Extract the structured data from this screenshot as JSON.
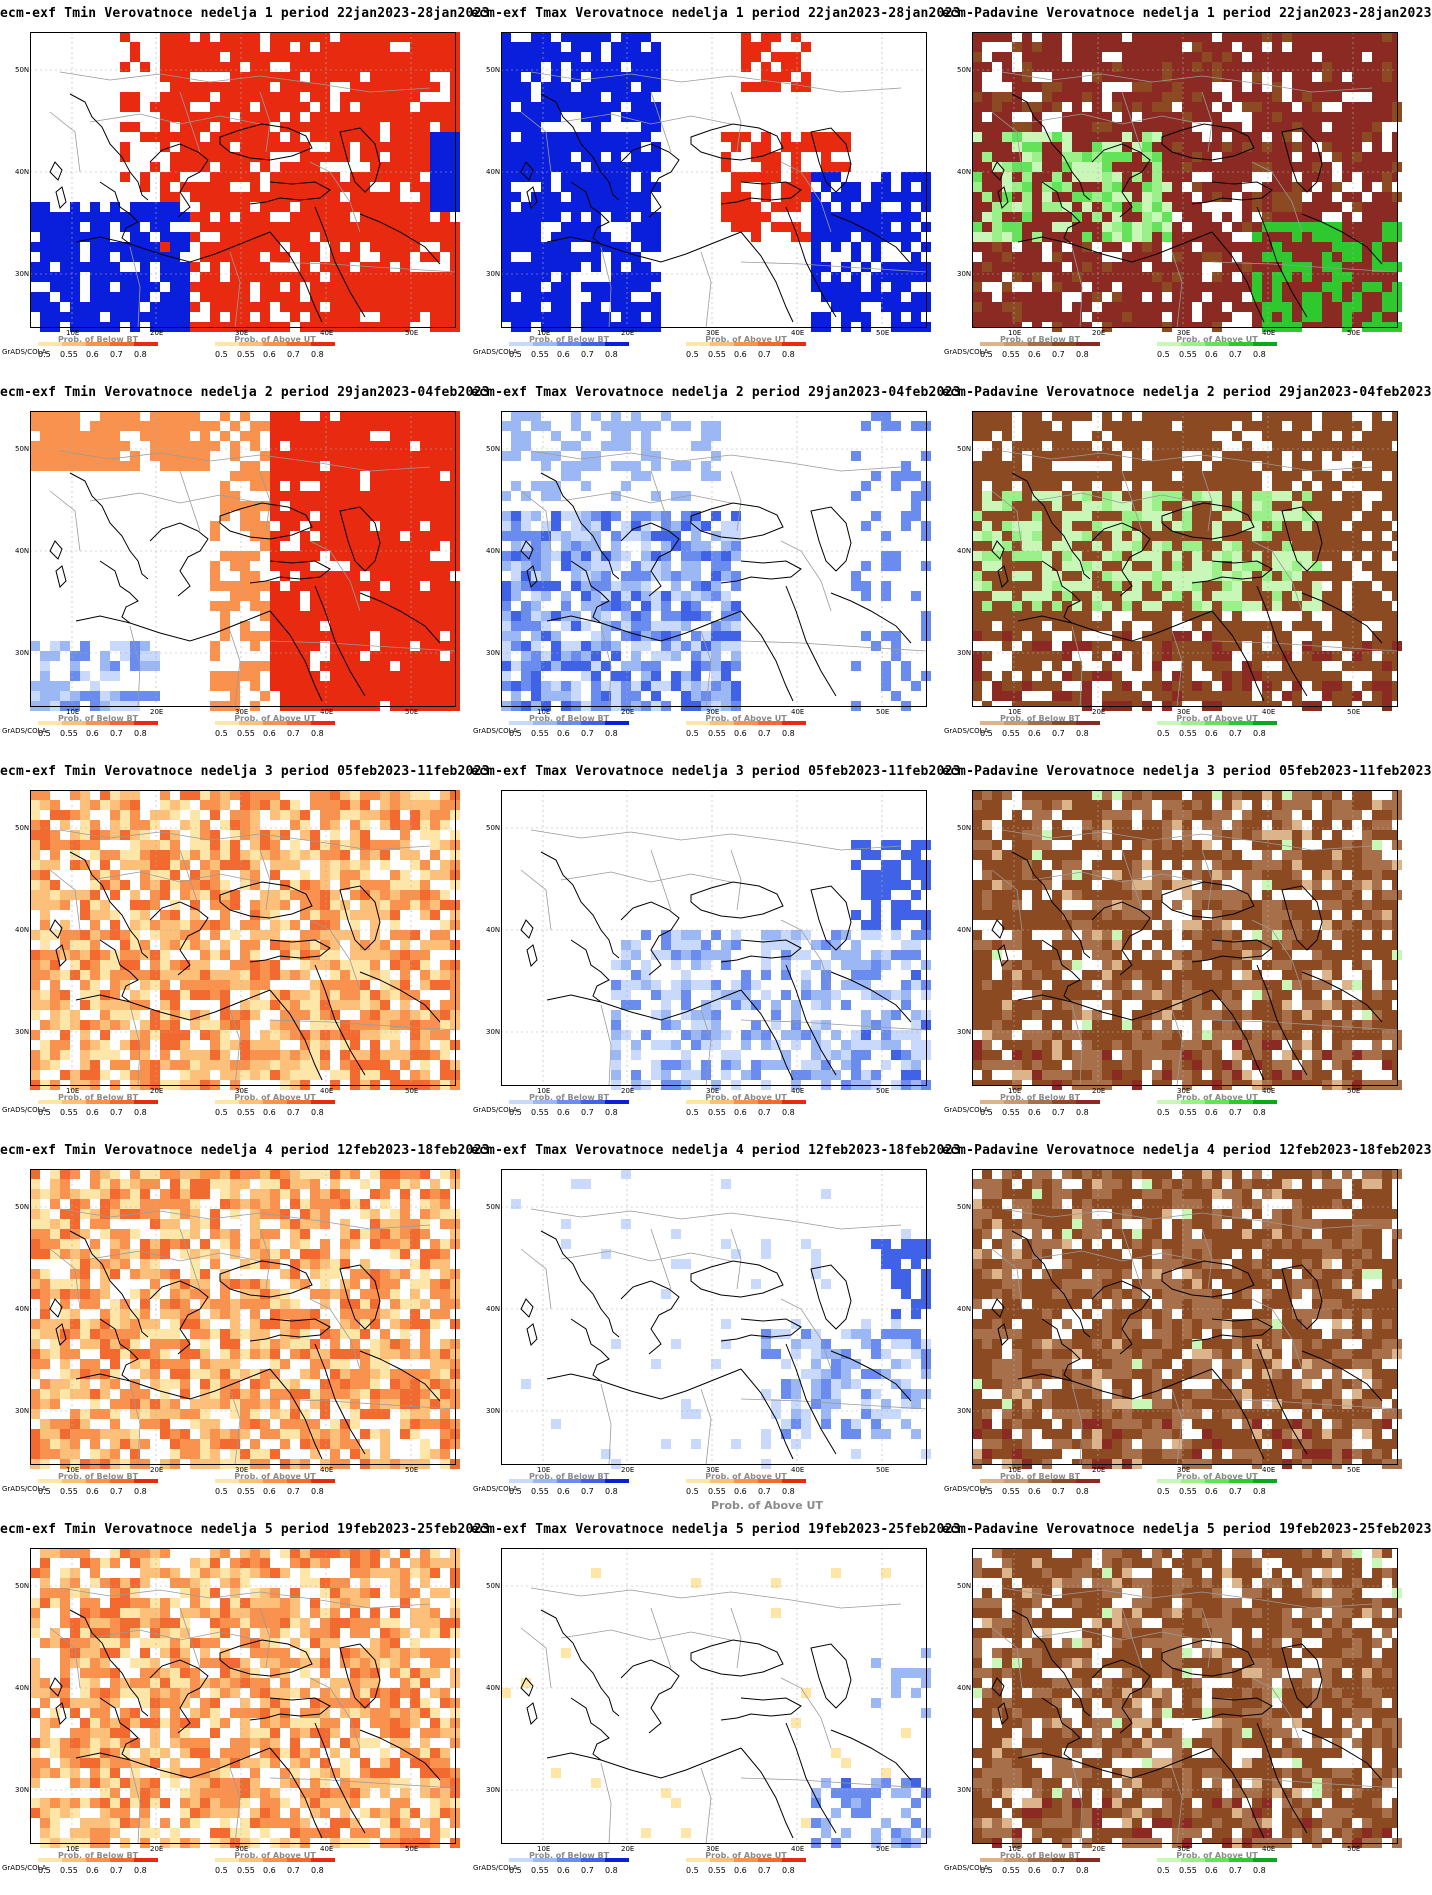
{
  "panels": [
    {
      "title": "ecm-exf Tmin Verovatnoce nedelja 1 period 22jan2023-28jan2023",
      "kind": "tmin",
      "fill": "red-strong"
    },
    {
      "title": "ecm-exf Tmax Verovatnoce nedelja 1 period 22jan2023-28jan2023",
      "kind": "tmax",
      "fill": "blue-strong"
    },
    {
      "title": "ecm-Padavine Verovatnoce nedelja 1 period 22jan2023-28jan2023",
      "kind": "prec",
      "fill": "maroon"
    },
    {
      "title": "ecm-exf Tmin Verovatnoce nedelja 2 period 29jan2023-04feb2023",
      "kind": "tmin",
      "fill": "red"
    },
    {
      "title": "ecm-exf Tmax Verovatnoce nedelja 2 period 29jan2023-04feb2023",
      "kind": "tmax",
      "fill": "blue"
    },
    {
      "title": "ecm-Padavine Verovatnoce nedelja 2 period 29jan2023-04feb2023",
      "kind": "prec",
      "fill": "brown-green"
    },
    {
      "title": "ecm-exf Tmin Verovatnoce nedelja 3 period 05feb2023-11feb2023",
      "kind": "tmin",
      "fill": "orange"
    },
    {
      "title": "ecm-exf Tmax Verovatnoce nedelja 3 period 05feb2023-11feb2023",
      "kind": "tmax",
      "fill": "blue-light"
    },
    {
      "title": "ecm-Padavine Verovatnoce nedelja 3 period 05feb2023-11feb2023",
      "kind": "prec",
      "fill": "brown"
    },
    {
      "title": "ecm-exf Tmin Verovatnoce nedelja 4 period 12feb2023-18feb2023",
      "kind": "tmin",
      "fill": "orange"
    },
    {
      "title": "ecm-exf Tmax Verovatnoce nedelja 4 period 12feb2023-18feb2023",
      "kind": "tmax",
      "fill": "blue-sparse"
    },
    {
      "title": "ecm-Padavine Verovatnoce nedelja 4 period 12feb2023-18feb2023",
      "kind": "prec",
      "fill": "brown"
    },
    {
      "title": "ecm-exf Tmin Verovatnoce nedelja 5 period 19feb2023-25feb2023",
      "kind": "tmin",
      "fill": "orange"
    },
    {
      "title": "ecm-exf Tmax Verovatnoce nedelja 5 period 19feb2023-25feb2023",
      "kind": "tmax",
      "fill": "blue-minimal"
    },
    {
      "title": "ecm-Padavine Verovatnoce nedelja 5 period 19feb2023-25feb2023",
      "kind": "prec",
      "fill": "brown"
    }
  ],
  "x_ticks": [
    "10E",
    "20E",
    "30E",
    "40E",
    "50E"
  ],
  "y_ticks": [
    "50N",
    "40N",
    "30N"
  ],
  "credit": "GrADS/COLA",
  "legend_values": [
    "0.5",
    "0.55",
    "0.6",
    "0.7",
    "0.8"
  ],
  "legend_titles": {
    "below": "Prob. of Below BT",
    "above": "Prob. of Above UT"
  },
  "extra_label": "Prob. of Above UT",
  "colors": {
    "red_scale": [
      "#fde6a8",
      "#fdc07a",
      "#f9924e",
      "#f26a30",
      "#e82a10"
    ],
    "blue_scale": [
      "#c8d9fb",
      "#9bb8f5",
      "#6a8cef",
      "#3f62e6",
      "#0a1fdc"
    ],
    "brown_scale": [
      "#dbb48c",
      "#c89a6e",
      "#a8704a",
      "#8b4a22",
      "#8b2a22"
    ],
    "green_scale": [
      "#c9f7b8",
      "#9bf08a",
      "#63e25a",
      "#2fc82f",
      "#0aa81a"
    ]
  }
}
